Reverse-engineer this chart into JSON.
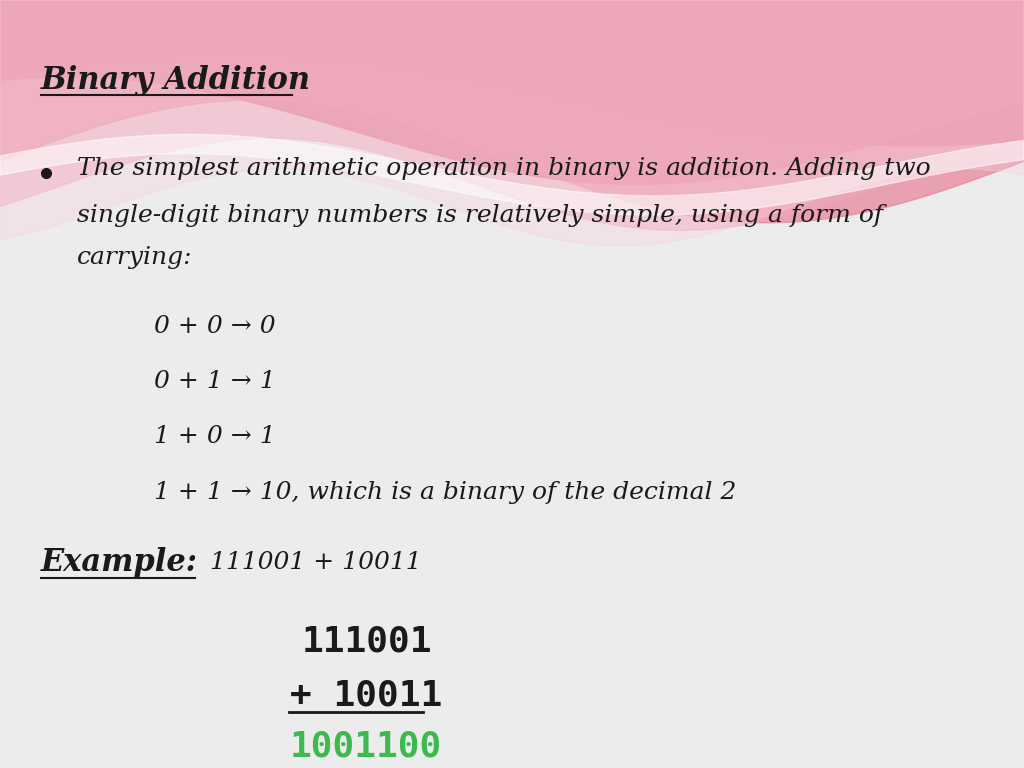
{
  "title": "Binary Addition",
  "title_color": "#1a1a1a",
  "title_fontsize": 22,
  "bg_color": "#ececec",
  "bullet_line1": "The simplest arithmetic operation in binary is addition. Adding two",
  "bullet_line2": "single-digit binary numbers is relatively simple, using a form of",
  "bullet_line3": "carrying:",
  "bullet_fontsize": 18,
  "rules": [
    "0 + 0 → 0",
    "0 + 1 → 1",
    "1 + 0 → 1",
    "1 + 1 → 10, which is a binary of the decimal 2"
  ],
  "rules_fontsize": 18,
  "example_label": "Example:",
  "example_expr": "111001 + 10011",
  "example_fontsize": 22,
  "calc_num1": "111001",
  "calc_num2": "+ 10011",
  "calc_result": "1001100",
  "calc_fontsize": 26,
  "result_color": "#3dba4e",
  "text_color": "#1a1a1a",
  "wave_colors": [
    "#c84870",
    "#d96080",
    "#e88098",
    "#f0a8bc",
    "#f8d0dc"
  ],
  "wave_white_color": "#ffffff"
}
